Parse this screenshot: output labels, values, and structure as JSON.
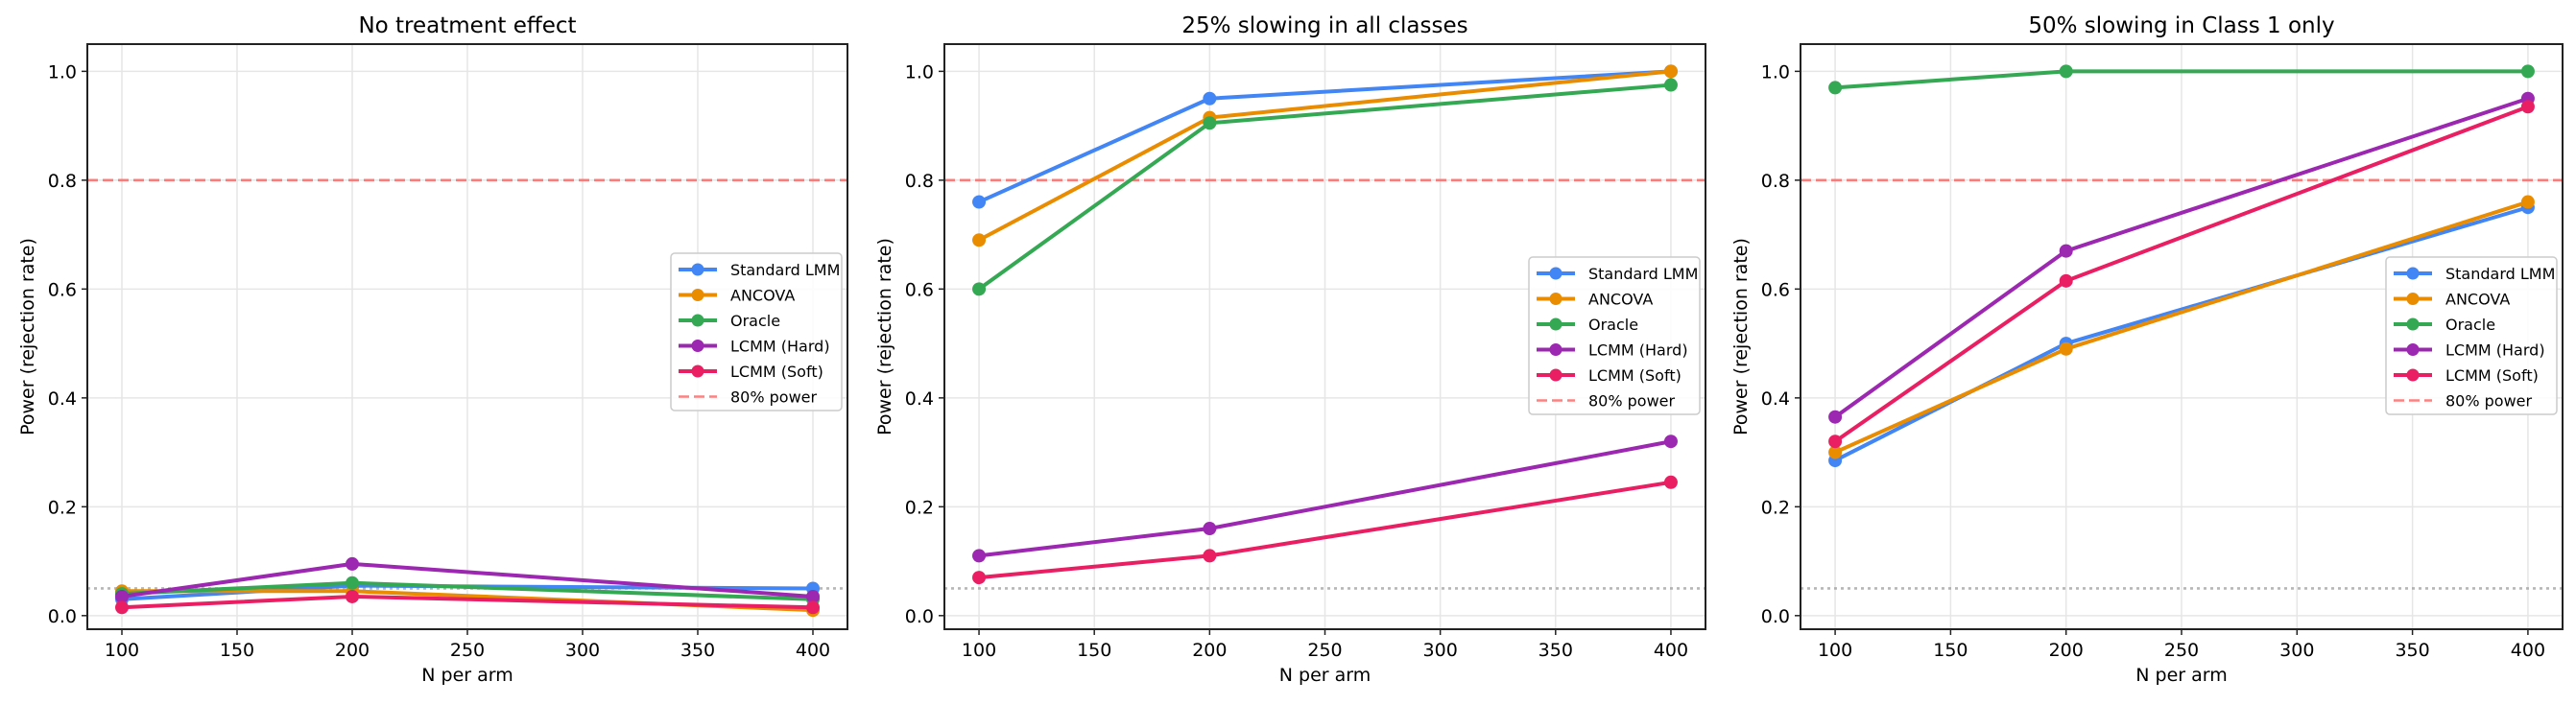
{
  "chart_data": [
    {
      "type": "line",
      "title": "No treatment effect",
      "xlabel": "N per arm",
      "ylabel": "Power (rejection rate)",
      "x": [
        100,
        200,
        400
      ],
      "xlim": [
        85,
        415
      ],
      "ylim": [
        -0.025,
        1.05
      ],
      "xticks": [
        100,
        150,
        200,
        250,
        300,
        350,
        400
      ],
      "yticks": [
        0.0,
        0.2,
        0.4,
        0.6,
        0.8,
        1.0
      ],
      "grid": true,
      "legend_placement": "center right",
      "series": [
        {
          "name": "Standard LMM",
          "color": "#4285F4",
          "values": [
            0.03,
            0.055,
            0.05
          ]
        },
        {
          "name": "ANCOVA",
          "color": "#EA8C00",
          "values": [
            0.045,
            0.045,
            0.01
          ]
        },
        {
          "name": "Oracle",
          "color": "#34A853",
          "values": [
            0.04,
            0.06,
            0.03
          ]
        },
        {
          "name": "LCMM (Hard)",
          "color": "#9C27B0",
          "values": [
            0.035,
            0.095,
            0.035
          ]
        },
        {
          "name": "LCMM (Soft)",
          "color": "#E91E63",
          "values": [
            0.015,
            0.035,
            0.015
          ]
        }
      ],
      "reference_lines": [
        {
          "name": "80% power",
          "y": 0.8,
          "style": "dashed",
          "color": "#FF5555",
          "in_legend": true
        },
        {
          "y": 0.05,
          "style": "dotted",
          "color": "#999999",
          "in_legend": false
        }
      ]
    },
    {
      "type": "line",
      "title": "25% slowing in all classes",
      "xlabel": "N per arm",
      "ylabel": "Power (rejection rate)",
      "x": [
        100,
        200,
        400
      ],
      "xlim": [
        85,
        415
      ],
      "ylim": [
        -0.025,
        1.05
      ],
      "xticks": [
        100,
        150,
        200,
        250,
        300,
        350,
        400
      ],
      "yticks": [
        0.0,
        0.2,
        0.4,
        0.6,
        0.8,
        1.0
      ],
      "grid": true,
      "legend_placement": "center right",
      "series": [
        {
          "name": "Standard LMM",
          "color": "#4285F4",
          "values": [
            0.76,
            0.95,
            1.0
          ]
        },
        {
          "name": "ANCOVA",
          "color": "#EA8C00",
          "values": [
            0.69,
            0.915,
            1.0
          ]
        },
        {
          "name": "Oracle",
          "color": "#34A853",
          "values": [
            0.6,
            0.905,
            0.975
          ]
        },
        {
          "name": "LCMM (Hard)",
          "color": "#9C27B0",
          "values": [
            0.11,
            0.16,
            0.32
          ]
        },
        {
          "name": "LCMM (Soft)",
          "color": "#E91E63",
          "values": [
            0.07,
            0.11,
            0.245
          ]
        }
      ],
      "reference_lines": [
        {
          "name": "80% power",
          "y": 0.8,
          "style": "dashed",
          "color": "#FF5555",
          "in_legend": true
        },
        {
          "y": 0.05,
          "style": "dotted",
          "color": "#999999",
          "in_legend": false
        }
      ]
    },
    {
      "type": "line",
      "title": "50% slowing in Class 1 only",
      "xlabel": "N per arm",
      "ylabel": "Power (rejection rate)",
      "x": [
        100,
        200,
        400
      ],
      "xlim": [
        85,
        415
      ],
      "ylim": [
        -0.025,
        1.05
      ],
      "xticks": [
        100,
        150,
        200,
        250,
        300,
        350,
        400
      ],
      "yticks": [
        0.0,
        0.2,
        0.4,
        0.6,
        0.8,
        1.0
      ],
      "grid": true,
      "legend_placement": "center right",
      "series": [
        {
          "name": "Standard LMM",
          "color": "#4285F4",
          "values": [
            0.285,
            0.5,
            0.75
          ]
        },
        {
          "name": "ANCOVA",
          "color": "#EA8C00",
          "values": [
            0.3,
            0.49,
            0.76
          ]
        },
        {
          "name": "Oracle",
          "color": "#34A853",
          "values": [
            0.97,
            1.0,
            1.0
          ]
        },
        {
          "name": "LCMM (Hard)",
          "color": "#9C27B0",
          "values": [
            0.365,
            0.67,
            0.95
          ]
        },
        {
          "name": "LCMM (Soft)",
          "color": "#E91E63",
          "values": [
            0.32,
            0.615,
            0.935
          ]
        }
      ],
      "reference_lines": [
        {
          "name": "80% power",
          "y": 0.8,
          "style": "dashed",
          "color": "#FF5555",
          "in_legend": true
        },
        {
          "y": 0.05,
          "style": "dotted",
          "color": "#999999",
          "in_legend": false
        }
      ]
    }
  ]
}
